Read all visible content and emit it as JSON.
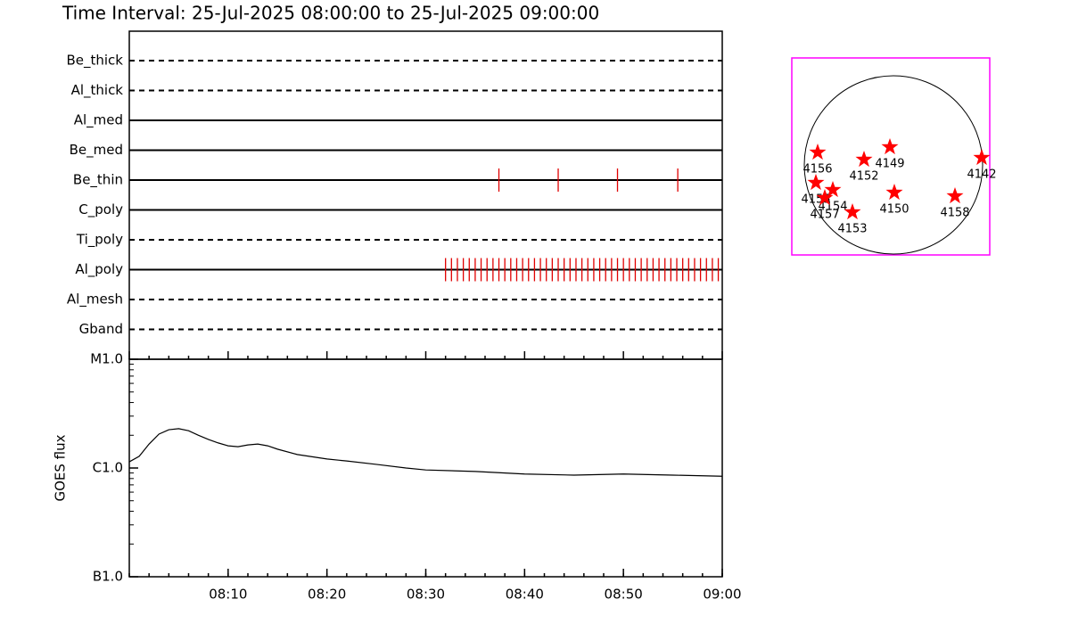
{
  "chart_data": [
    {
      "type": "timeline",
      "title": "Time Interval: 25-Jul-2025 08:00:00 to 25-Jul-2025 09:00:00",
      "categories": [
        "Be_thick",
        "Al_thick",
        "Al_med",
        "Be_med",
        "Be_thin",
        "C_poly",
        "Ti_poly",
        "Al_poly",
        "Al_mesh",
        "Gband"
      ],
      "line_styles": [
        "dashed",
        "dashed",
        "solid",
        "solid",
        "solid",
        "solid",
        "dashed",
        "solid",
        "dashed",
        "dashed"
      ],
      "events": [
        [],
        [],
        [],
        [],
        [
          37.4,
          43.4,
          49.4,
          55.5
        ],
        [],
        [],
        [
          32.0,
          32.6,
          33.2,
          33.8,
          34.4,
          35.0,
          35.6,
          36.2,
          36.8,
          37.4,
          38.0,
          38.6,
          39.2,
          39.8,
          40.4,
          41.0,
          41.6,
          42.2,
          42.8,
          43.4,
          44.0,
          44.6,
          45.2,
          45.8,
          46.4,
          47.0,
          47.6,
          48.2,
          48.8,
          49.4,
          50.0,
          50.6,
          51.2,
          51.8,
          52.4,
          53.0,
          53.6,
          54.2,
          54.8,
          55.4,
          56.0,
          56.6,
          57.2,
          57.8,
          58.4,
          59.0,
          59.6
        ],
        [],
        []
      ],
      "color": "#e00000",
      "xlim": [
        0,
        60
      ]
    },
    {
      "type": "line",
      "ylabel": "GOES flux",
      "x": [
        0,
        1,
        2,
        3,
        4,
        5,
        6,
        7,
        8,
        9,
        10,
        11,
        12,
        13,
        14,
        15,
        17,
        20,
        22,
        25,
        28,
        30,
        35,
        40,
        45,
        50,
        55,
        60
      ],
      "values": [
        1.14e-06,
        1.28e-06,
        1.66e-06,
        2.05e-06,
        2.25e-06,
        2.3e-06,
        2.2e-06,
        2e-06,
        1.83e-06,
        1.7e-06,
        1.6e-06,
        1.57e-06,
        1.63e-06,
        1.66e-06,
        1.6e-06,
        1.49e-06,
        1.33e-06,
        1.21e-06,
        1.16e-06,
        1.08e-06,
        1e-06,
        9.6e-07,
        9.3e-07,
        8.8e-07,
        8.6e-07,
        8.8e-07,
        8.6e-07,
        8.4e-07
      ],
      "color": "#000000",
      "log_scale": true,
      "xlim": [
        0,
        60
      ],
      "xticks": [
        {
          "value": 10,
          "label": "08:10"
        },
        {
          "value": 20,
          "label": "08:20"
        },
        {
          "value": 30,
          "label": "08:30"
        },
        {
          "value": 40,
          "label": "08:40"
        },
        {
          "value": 50,
          "label": "08:50"
        },
        {
          "value": 60,
          "label": "09:00"
        }
      ],
      "ylim": [
        1e-07,
        1e-05
      ],
      "yticks": [
        {
          "value": 1e-07,
          "label": "B1.0"
        },
        {
          "value": 1e-06,
          "label": "C1.0"
        },
        {
          "value": 1e-05,
          "label": "M1.0"
        }
      ]
    },
    {
      "type": "scatter",
      "labels": [
        "4149",
        "4152",
        "4156",
        "4142",
        "4155",
        "4154",
        "4157",
        "4153",
        "4150",
        "4158"
      ],
      "x": [
        -0.04,
        -0.33,
        -0.85,
        0.99,
        -0.87,
        -0.68,
        -0.77,
        -0.46,
        0.01,
        0.69
      ],
      "y": [
        0.2,
        0.06,
        0.14,
        0.08,
        -0.2,
        -0.28,
        -0.37,
        -0.53,
        -0.31,
        -0.35
      ],
      "color": "#ff0000",
      "frame_color": "#ff00ff",
      "xlim": [
        -1.14,
        1.08
      ],
      "ylim": [
        -1.01,
        1.2
      ]
    }
  ]
}
